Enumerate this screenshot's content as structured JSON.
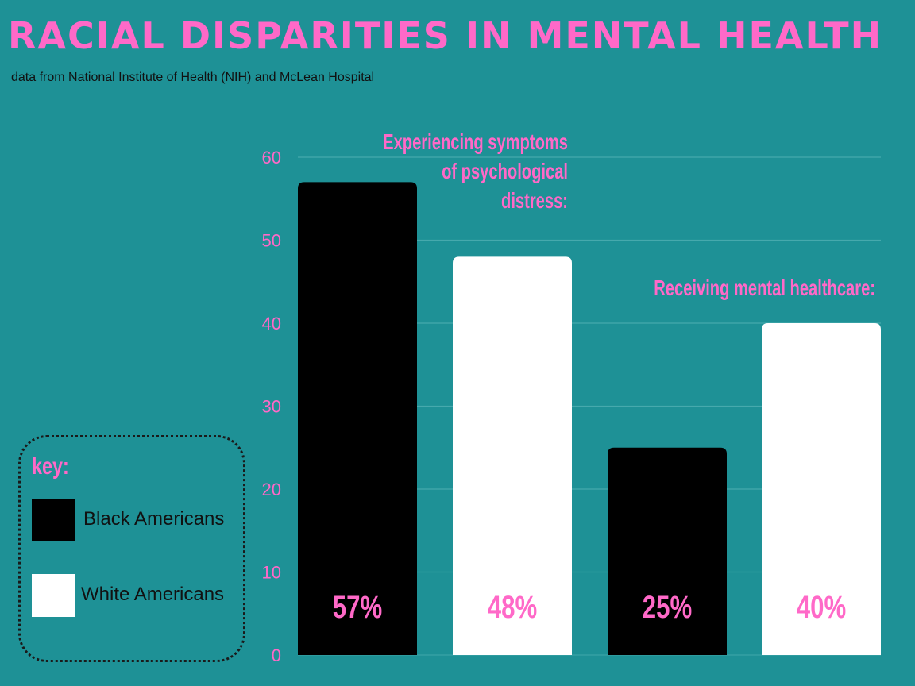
{
  "title": "RACIAL DISPARITIES IN MENTAL HEALTH",
  "subtitle": "data from National Institute of Health (NIH) and McLean Hospital",
  "colors": {
    "background": "#1e9196",
    "accent": "#ff69c8",
    "black_americans": "#000000",
    "white_americans": "#ffffff"
  },
  "legend": {
    "title": "key:",
    "items": [
      {
        "label": "Black Americans",
        "color": "#000000"
      },
      {
        "label": "White Americans",
        "color": "#ffffff"
      }
    ]
  },
  "chart_data": {
    "type": "bar",
    "categories": [
      "Experiencing symptoms of psychological distress:",
      "Receiving mental healthcare:"
    ],
    "series": [
      {
        "name": "Black Americans",
        "values": [
          57,
          25
        ],
        "labels": [
          "57%",
          "25%"
        ]
      },
      {
        "name": "White Americans",
        "values": [
          48,
          40
        ],
        "labels": [
          "48%",
          "40%"
        ]
      }
    ],
    "group_labels": [
      [
        "Experiencing symptoms",
        "of psychological",
        "distress:"
      ],
      [
        "Receiving mental healthcare:"
      ]
    ],
    "yticks": [
      0,
      10,
      20,
      30,
      40,
      50,
      60
    ],
    "ylim": [
      0,
      60
    ],
    "grid": true,
    "legend_position": "bottom-left"
  }
}
